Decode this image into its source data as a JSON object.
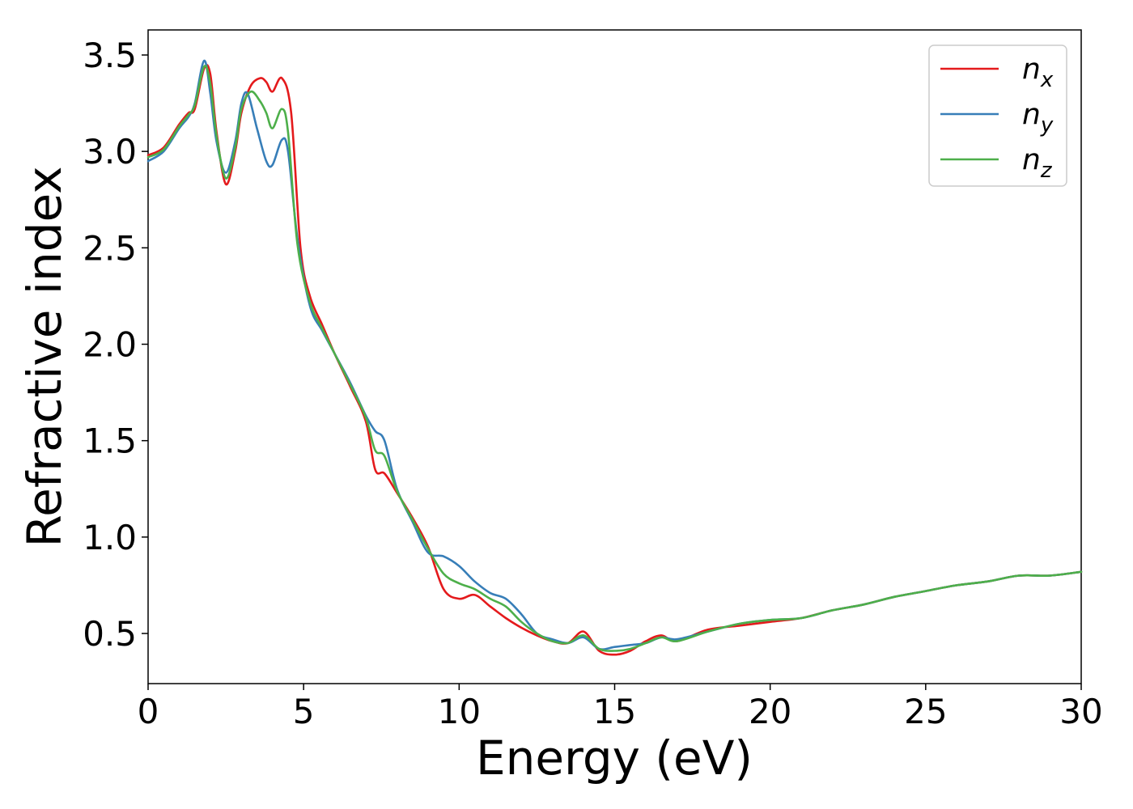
{
  "chart_data": {
    "type": "line",
    "title": "",
    "xlabel": "Energy (eV)",
    "ylabel": "Refractive index",
    "xlim": [
      0,
      30
    ],
    "ylim": [
      0.24,
      3.63
    ],
    "xticks": [
      0,
      5,
      10,
      15,
      20,
      25,
      30
    ],
    "yticks": [
      0.5,
      1.0,
      1.5,
      2.0,
      2.5,
      3.0,
      3.5
    ],
    "xtick_labels": [
      "0",
      "5",
      "10",
      "15",
      "20",
      "25",
      "30"
    ],
    "ytick_labels": [
      "0.5",
      "1.0",
      "1.5",
      "2.0",
      "2.5",
      "3.0",
      "3.5"
    ],
    "grid": false,
    "legend_position": "top-right",
    "series": [
      {
        "name": "n_x",
        "label_base": "n",
        "label_sub": "x",
        "color": "#e41a1c",
        "x": [
          0,
          0.5,
          1.0,
          1.3,
          1.5,
          1.8,
          2.0,
          2.2,
          2.5,
          2.8,
          3.0,
          3.3,
          3.6,
          3.8,
          4.0,
          4.3,
          4.6,
          4.9,
          5.2,
          5.6,
          6.0,
          6.5,
          7.0,
          7.3,
          7.6,
          8.0,
          8.5,
          9.0,
          9.5,
          10.0,
          10.5,
          11.0,
          11.5,
          12.0,
          12.5,
          13.0,
          13.5,
          14.0,
          14.5,
          15.0,
          15.5,
          16.0,
          16.5,
          17.0,
          18.0,
          19.0,
          20.0,
          21.0,
          22.0,
          23.0,
          24.0,
          25.0,
          26.0,
          27.0,
          28.0,
          29.0,
          30.0
        ],
        "y": [
          2.98,
          3.02,
          3.14,
          3.2,
          3.22,
          3.43,
          3.4,
          3.1,
          2.83,
          3.0,
          3.2,
          3.34,
          3.38,
          3.36,
          3.31,
          3.38,
          3.2,
          2.5,
          2.25,
          2.1,
          1.95,
          1.78,
          1.6,
          1.35,
          1.33,
          1.23,
          1.1,
          0.95,
          0.73,
          0.68,
          0.7,
          0.64,
          0.58,
          0.53,
          0.49,
          0.46,
          0.45,
          0.51,
          0.41,
          0.39,
          0.41,
          0.46,
          0.49,
          0.46,
          0.52,
          0.54,
          0.56,
          0.58,
          0.62,
          0.65,
          0.69,
          0.72,
          0.75,
          0.77,
          0.8,
          0.8,
          0.82
        ]
      },
      {
        "name": "n_y",
        "label_base": "n",
        "label_sub": "y",
        "color": "#377eb8",
        "x": [
          0,
          0.5,
          1.0,
          1.3,
          1.5,
          1.8,
          2.0,
          2.2,
          2.5,
          2.8,
          3.0,
          3.2,
          3.5,
          3.8,
          4.0,
          4.3,
          4.5,
          4.8,
          5.2,
          5.6,
          6.0,
          6.5,
          7.0,
          7.3,
          7.6,
          8.0,
          8.5,
          9.0,
          9.5,
          10.0,
          10.5,
          11.0,
          11.5,
          12.0,
          12.5,
          13.0,
          13.5,
          14.0,
          14.5,
          15.0,
          15.5,
          16.0,
          16.5,
          17.0,
          18.0,
          19.0,
          20.0,
          21.0,
          22.0,
          23.0,
          24.0,
          25.0,
          26.0,
          27.0,
          28.0,
          29.0,
          30.0
        ],
        "y": [
          2.95,
          3.0,
          3.12,
          3.18,
          3.25,
          3.47,
          3.3,
          3.05,
          2.89,
          3.05,
          3.25,
          3.3,
          3.12,
          2.95,
          2.93,
          3.06,
          3.0,
          2.55,
          2.2,
          2.07,
          1.95,
          1.8,
          1.63,
          1.55,
          1.5,
          1.25,
          1.08,
          0.92,
          0.9,
          0.85,
          0.77,
          0.71,
          0.68,
          0.6,
          0.5,
          0.47,
          0.45,
          0.48,
          0.42,
          0.43,
          0.44,
          0.45,
          0.48,
          0.47,
          0.51,
          0.55,
          0.57,
          0.58,
          0.62,
          0.65,
          0.69,
          0.72,
          0.75,
          0.77,
          0.8,
          0.8,
          0.82
        ]
      },
      {
        "name": "n_z",
        "label_base": "n",
        "label_sub": "z",
        "color": "#4daf4a",
        "x": [
          0,
          0.5,
          1.0,
          1.3,
          1.5,
          1.8,
          2.0,
          2.2,
          2.5,
          2.8,
          3.0,
          3.3,
          3.6,
          3.8,
          4.0,
          4.3,
          4.5,
          4.8,
          5.2,
          5.6,
          6.0,
          6.5,
          7.0,
          7.3,
          7.6,
          8.0,
          8.5,
          9.0,
          9.5,
          10.0,
          10.5,
          11.0,
          11.5,
          12.0,
          12.5,
          13.0,
          13.5,
          14.0,
          14.5,
          15.0,
          15.5,
          16.0,
          16.5,
          17.0,
          18.0,
          19.0,
          20.0,
          21.0,
          22.0,
          23.0,
          24.0,
          25.0,
          26.0,
          27.0,
          28.0,
          29.0,
          30.0
        ],
        "y": [
          2.97,
          3.01,
          3.13,
          3.19,
          3.24,
          3.44,
          3.35,
          3.08,
          2.86,
          3.02,
          3.22,
          3.31,
          3.26,
          3.2,
          3.12,
          3.22,
          3.1,
          2.52,
          2.22,
          2.08,
          1.95,
          1.79,
          1.62,
          1.45,
          1.42,
          1.24,
          1.09,
          0.94,
          0.81,
          0.76,
          0.73,
          0.68,
          0.64,
          0.56,
          0.5,
          0.46,
          0.45,
          0.49,
          0.42,
          0.41,
          0.42,
          0.45,
          0.48,
          0.46,
          0.51,
          0.55,
          0.57,
          0.58,
          0.62,
          0.65,
          0.69,
          0.72,
          0.75,
          0.77,
          0.8,
          0.8,
          0.82
        ]
      }
    ]
  }
}
